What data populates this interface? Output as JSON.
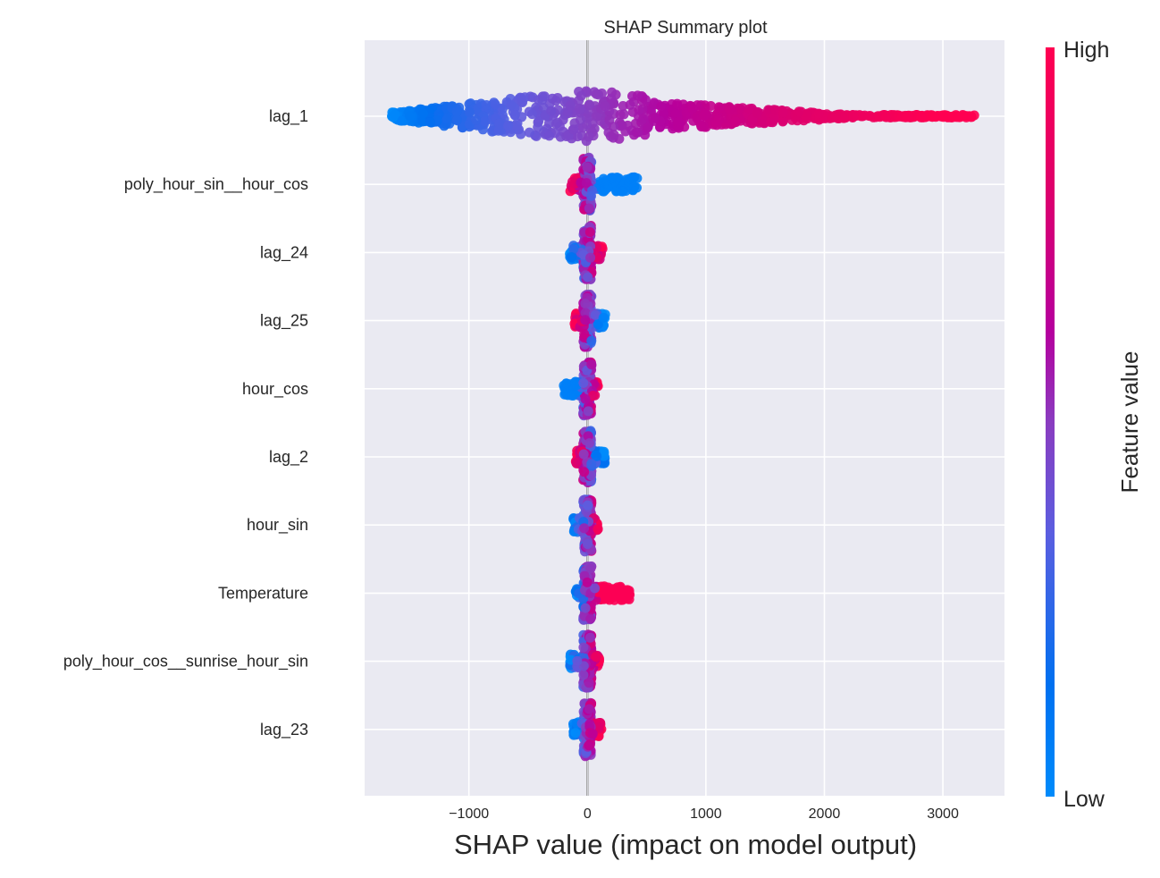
{
  "chart_data": {
    "type": "scatter",
    "subtype": "shap-beeswarm",
    "title": "SHAP Summary plot",
    "xlabel": "SHAP value (impact on model output)",
    "ylabel": "",
    "xlim": [
      -1880,
      3520
    ],
    "xticks": [
      -1000,
      0,
      1000,
      2000,
      3000
    ],
    "xtick_labels": [
      "−1000",
      "0",
      "1000",
      "2000",
      "3000"
    ],
    "grid": true,
    "colorbar": {
      "title": "Feature value",
      "high_label": "High",
      "low_label": "Low",
      "colors": [
        "#008bfb",
        "#0070f0",
        "#5a5ee0",
        "#8a3cc0",
        "#b5009e",
        "#e0006a",
        "#ff0051"
      ]
    },
    "features": [
      {
        "name": "lag_1",
        "min": -1650,
        "max": 3270,
        "spread": 1.0,
        "high_side": "positive",
        "tail_high_to": 3270
      },
      {
        "name": "poly_hour_sin__hour_cos",
        "min": -160,
        "max": 420,
        "spread": 0.45,
        "high_side": "negative",
        "tail_low_to": 420
      },
      {
        "name": "lag_24",
        "min": -150,
        "max": 130,
        "spread": 0.42,
        "high_side": "positive"
      },
      {
        "name": "lag_25",
        "min": -110,
        "max": 150,
        "spread": 0.42,
        "high_side": "negative"
      },
      {
        "name": "hour_cos",
        "min": -200,
        "max": 100,
        "spread": 0.42,
        "high_side": "positive",
        "tail_low_to": -200
      },
      {
        "name": "lag_2",
        "min": -100,
        "max": 150,
        "spread": 0.42,
        "high_side": "negative"
      },
      {
        "name": "hour_sin",
        "min": -120,
        "max": 90,
        "spread": 0.42,
        "high_side": "positive"
      },
      {
        "name": "Temperature",
        "min": -100,
        "max": 360,
        "spread": 0.42,
        "high_side": "positive",
        "tail_high_to": 360
      },
      {
        "name": "poly_hour_cos__sunrise_hour_sin",
        "min": -150,
        "max": 100,
        "spread": 0.4,
        "high_side": "positive"
      },
      {
        "name": "lag_23",
        "min": -120,
        "max": 120,
        "spread": 0.4,
        "high_side": "positive"
      }
    ]
  }
}
